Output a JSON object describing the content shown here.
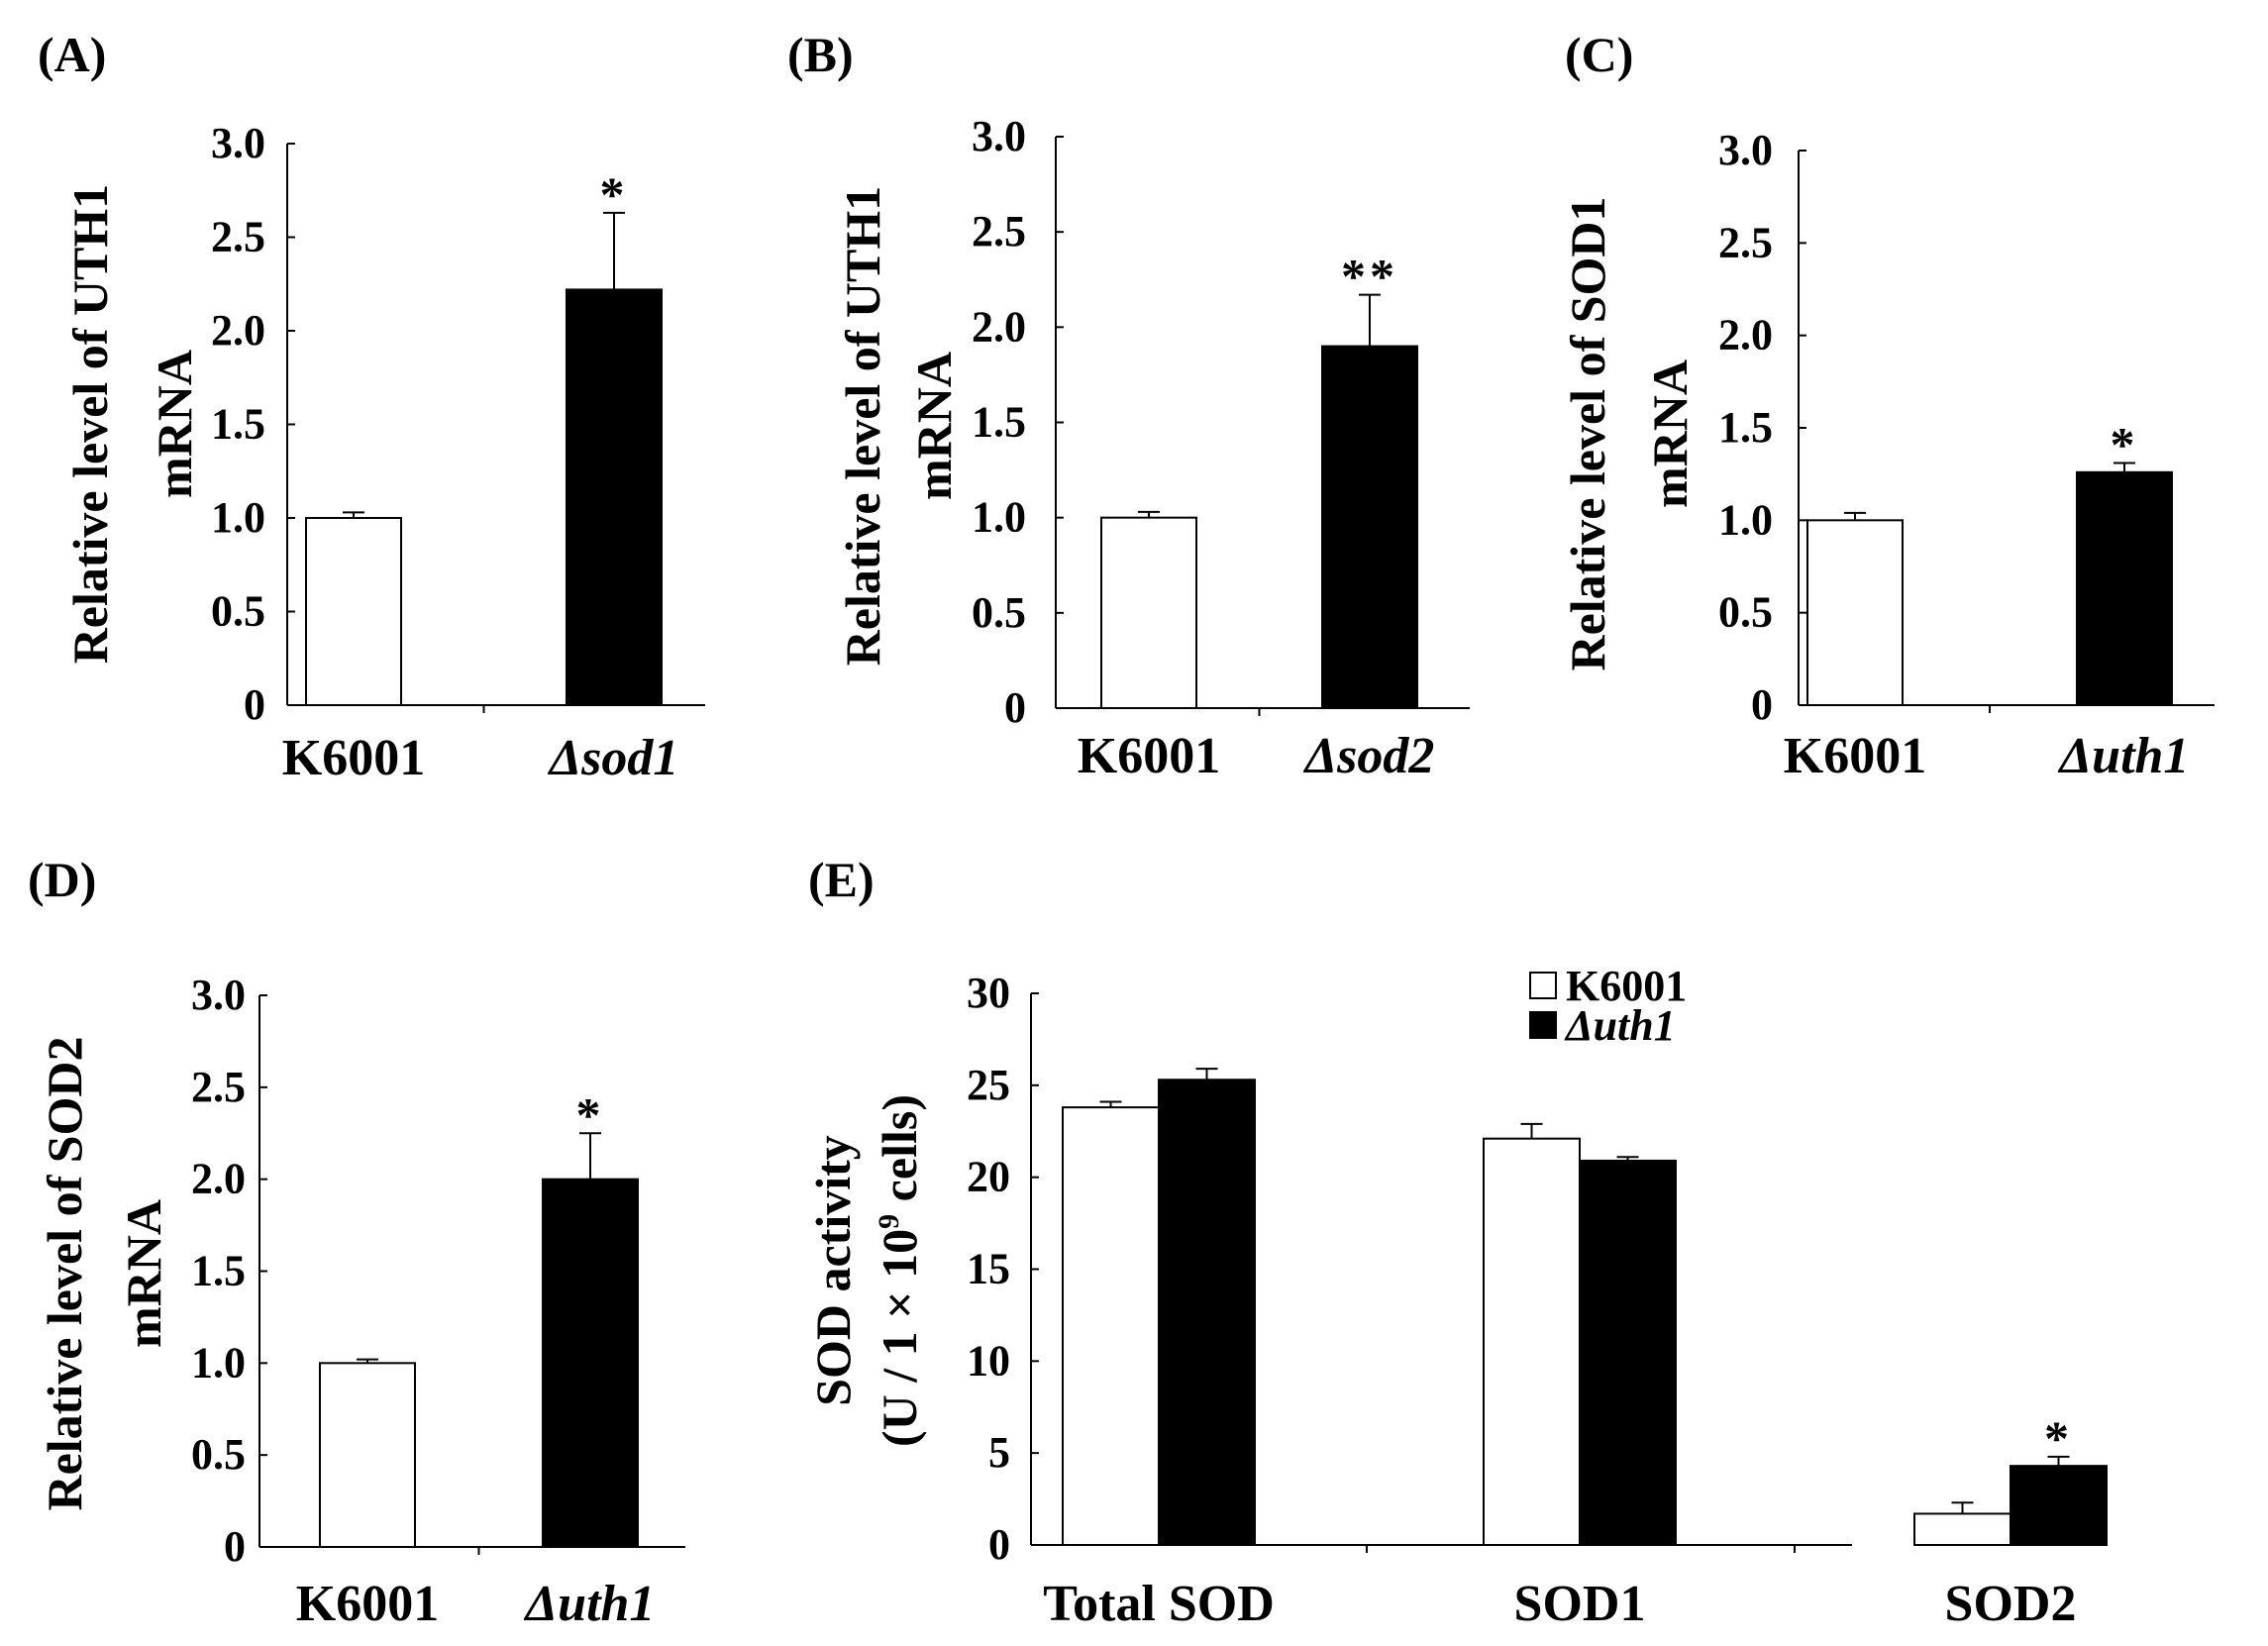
{
  "chart_data": [
    {
      "type": "bar",
      "panel_label": "(A)",
      "ylabel_line1": "Relative level of UTH1",
      "ylabel_line2": "mRNA",
      "ylim": [
        0,
        3.0
      ],
      "yticks": [
        "0",
        "0.5",
        "1.0",
        "1.5",
        "2.0",
        "2.5",
        "3.0"
      ],
      "categories": [
        "K6001",
        "Δsod1"
      ],
      "values": [
        1.0,
        2.22
      ],
      "errors": [
        0.03,
        0.41
      ],
      "fill": [
        "#ffffff",
        "#000000"
      ],
      "significance": [
        "",
        "*"
      ]
    },
    {
      "type": "bar",
      "panel_label": "(B)",
      "ylabel_line1": "Relative level of UTH1",
      "ylabel_line2": "mRNA",
      "ylim": [
        0,
        3.0
      ],
      "yticks": [
        "0",
        "0.5",
        "1.0",
        "1.5",
        "2.0",
        "2.5",
        "3.0"
      ],
      "categories": [
        "K6001",
        "Δsod2"
      ],
      "values": [
        1.0,
        1.9
      ],
      "errors": [
        0.03,
        0.27
      ],
      "fill": [
        "#ffffff",
        "#000000"
      ],
      "significance": [
        "",
        "**"
      ]
    },
    {
      "type": "bar",
      "panel_label": "(C)",
      "ylabel_line1": "Relative level of SOD1",
      "ylabel_line2": "mRNA",
      "ylim": [
        0,
        3.0
      ],
      "yticks": [
        "0",
        "0.5",
        "1.0",
        "1.5",
        "2.0",
        "2.5",
        "3.0"
      ],
      "categories": [
        "K6001",
        "Δuth1"
      ],
      "values": [
        1.0,
        1.26
      ],
      "errors": [
        0.04,
        0.05
      ],
      "fill": [
        "#ffffff",
        "#000000"
      ],
      "significance": [
        "",
        "*"
      ]
    },
    {
      "type": "bar",
      "panel_label": "(D)",
      "ylabel_line1": "Relative level of SOD2",
      "ylabel_line2": "mRNA",
      "ylim": [
        0,
        3.0
      ],
      "yticks": [
        "0",
        "0.5",
        "1.0",
        "1.5",
        "2.0",
        "2.5",
        "3.0"
      ],
      "categories": [
        "K6001",
        "Δuth1"
      ],
      "values": [
        1.0,
        2.0
      ],
      "errors": [
        0.02,
        0.25
      ],
      "fill": [
        "#ffffff",
        "#000000"
      ],
      "significance": [
        "",
        "*"
      ]
    },
    {
      "type": "bar",
      "panel_label": "(E)",
      "ylabel_line1": "SOD activity",
      "ylabel_line2_prefix": "(U / 1 × 10",
      "ylabel_line2_sup": "9",
      "ylabel_line2_suffix": " cells)",
      "ylim": [
        0,
        30
      ],
      "yticks": [
        "0",
        "5",
        "10",
        "15",
        "20",
        "25",
        "30"
      ],
      "categories": [
        "Total SOD",
        "SOD1",
        "SOD2"
      ],
      "series": [
        {
          "name": "K6001",
          "values": [
            23.8,
            22.1,
            1.7
          ],
          "errors": [
            0.3,
            0.8,
            0.6
          ],
          "fill": "#ffffff"
        },
        {
          "name": "Δuth1",
          "values": [
            25.3,
            20.9,
            4.3
          ],
          "errors": [
            0.6,
            0.2,
            0.5
          ],
          "fill": "#000000"
        }
      ],
      "significance": [
        [
          "",
          ""
        ],
        [
          "",
          ""
        ],
        [
          "",
          "*"
        ]
      ],
      "legend_position": "top-center"
    }
  ]
}
